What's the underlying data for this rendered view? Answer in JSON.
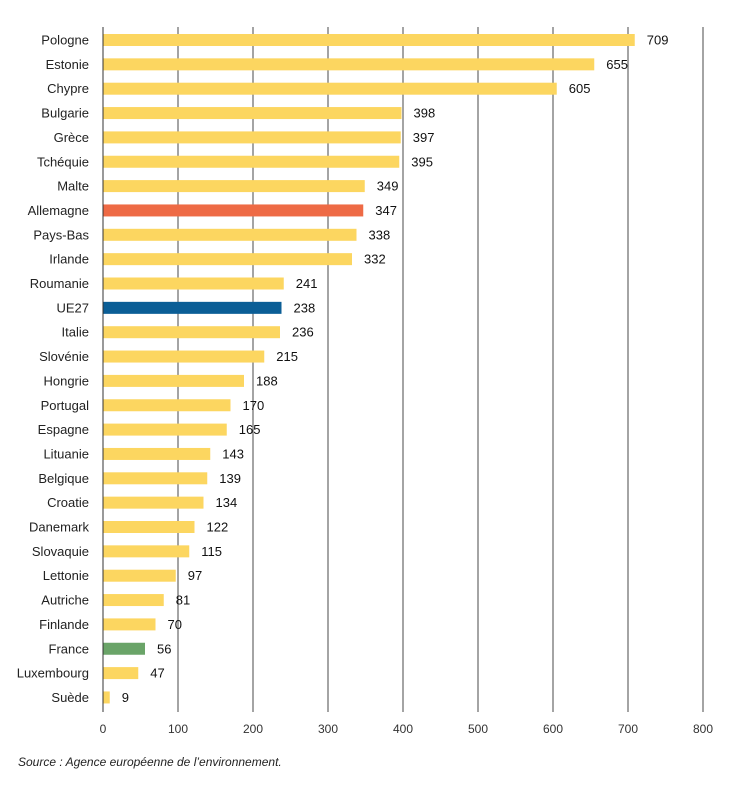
{
  "chart_data": {
    "type": "bar",
    "orientation": "horizontal",
    "categories": [
      "Pologne",
      "Estonie",
      "Chypre",
      "Bulgarie",
      "Grèce",
      "Tchéquie",
      "Malte",
      "Allemagne",
      "Pays-Bas",
      "Irlande",
      "Roumanie",
      "UE27",
      "Italie",
      "Slovénie",
      "Hongrie",
      "Portugal",
      "Espagne",
      "Lituanie",
      "Belgique",
      "Croatie",
      "Danemark",
      "Slovaquie",
      "Lettonie",
      "Autriche",
      "Finlande",
      "France",
      "Luxembourg",
      "Suède"
    ],
    "values": [
      709,
      655,
      605,
      398,
      397,
      395,
      349,
      347,
      338,
      332,
      241,
      238,
      236,
      215,
      188,
      170,
      165,
      143,
      139,
      134,
      122,
      115,
      97,
      81,
      70,
      56,
      47,
      9
    ],
    "x_ticks": [
      "0",
      "100",
      "200",
      "300",
      "400",
      "500",
      "600",
      "700",
      "800"
    ],
    "xlim": [
      0,
      800
    ],
    "grid": true,
    "colors": {
      "default": "#fcd660",
      "highlights": {
        "Allemagne": "#ee6a45",
        "UE27": "#0b5e96",
        "France": "#6aa468"
      }
    }
  },
  "source": "Source : Agence européenne de l’environnement."
}
